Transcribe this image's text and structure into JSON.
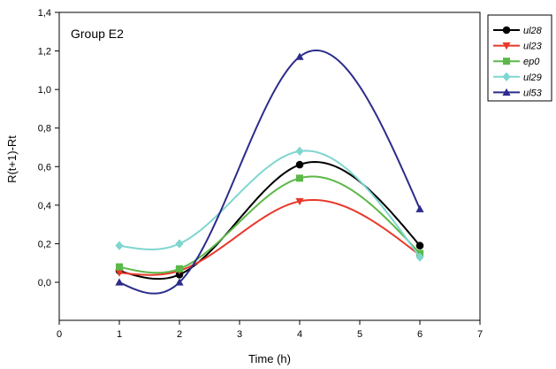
{
  "chart_data": {
    "type": "line",
    "title": "",
    "annotation": "Group E2",
    "xlabel": "Time (h)",
    "ylabel": "R(t+1)-Rt",
    "xlim": [
      0,
      7
    ],
    "ylim": [
      -0.16,
      1.4
    ],
    "xticks": [
      0,
      1,
      2,
      3,
      4,
      5,
      6,
      7
    ],
    "xtick_labels": [
      "0",
      "1",
      "2",
      "3",
      "4",
      "5",
      "6",
      "7"
    ],
    "yticks": [
      0.0,
      0.2,
      0.4,
      0.6,
      0.8,
      1.0,
      1.2,
      1.4
    ],
    "ytick_labels": [
      "0,0",
      "0,2",
      "0,4",
      "0,6",
      "0,8",
      "1,0",
      "1,2",
      "1,4"
    ],
    "grid": false,
    "legend_position": "outside-top-right",
    "x": [
      1,
      2,
      4,
      6
    ],
    "series": [
      {
        "name": "ul28",
        "color": "#000000",
        "marker": "circle",
        "values": [
          0.06,
          0.04,
          0.61,
          0.19
        ]
      },
      {
        "name": "ul23",
        "color": "#e8382a",
        "marker": "triangle-down",
        "values": [
          0.05,
          0.06,
          0.42,
          0.14
        ]
      },
      {
        "name": "ep0",
        "color": "#5cb848",
        "marker": "square",
        "values": [
          0.08,
          0.07,
          0.54,
          0.15
        ]
      },
      {
        "name": "ul29",
        "color": "#7fd6d0",
        "marker": "diamond",
        "values": [
          0.19,
          0.2,
          0.68,
          0.13
        ]
      },
      {
        "name": "ul53",
        "color": "#2c2c8c",
        "marker": "triangle-up",
        "values": [
          0.0,
          0.0,
          1.17,
          0.38
        ]
      }
    ]
  }
}
